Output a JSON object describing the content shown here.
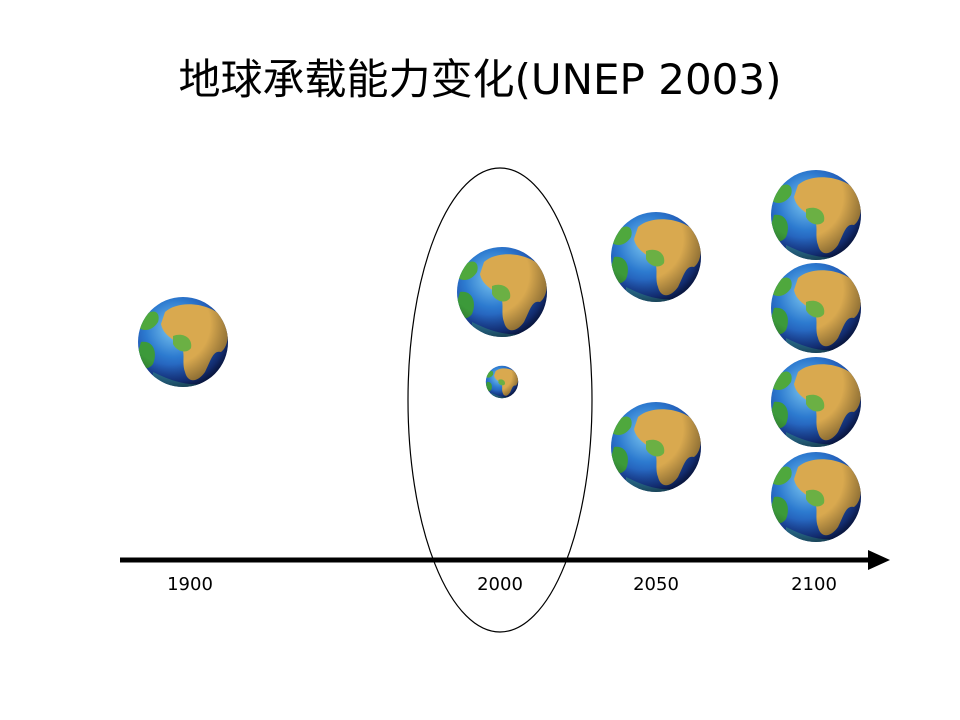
{
  "title": "地球承载能力变化(UNEP 2003)",
  "timeline": {
    "labels": [
      "1900",
      "2000",
      "2050",
      "2100"
    ]
  }
}
